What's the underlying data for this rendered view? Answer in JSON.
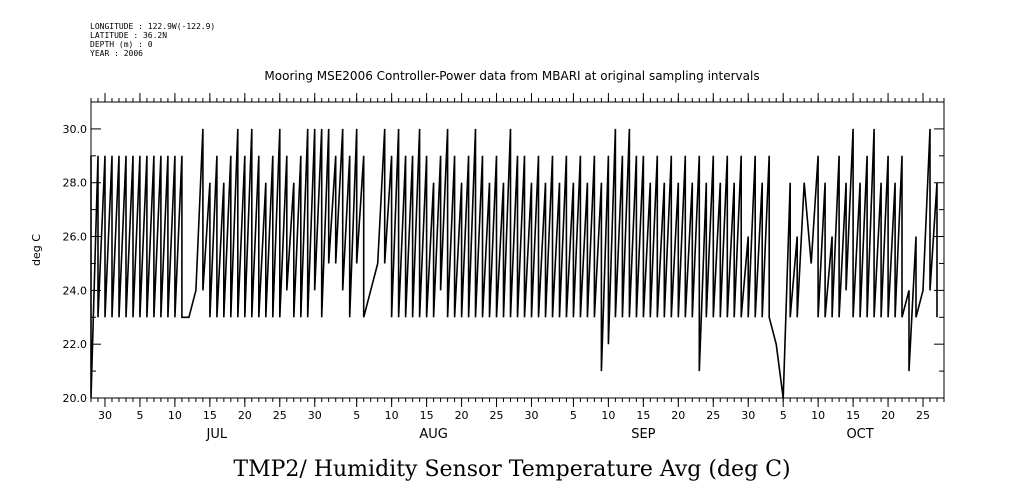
{
  "header": {
    "longitude": "LONGITUDE : 122.9W(-122.9)",
    "latitude": "LATITUDE : 36.2N",
    "depth": "DEPTH (m) : 0",
    "year": "YEAR : 2006"
  },
  "chart_data": {
    "type": "line",
    "title": "Mooring MSE2006 Controller-Power data from MBARI at original sampling intervals",
    "ylabel": "deg C",
    "bottom_title": "TMP2/ Humidity Sensor Temperature Avg (deg C)",
    "ylim": [
      20.0,
      31.0
    ],
    "y_ticks": [
      "20.0",
      "22.0",
      "24.0",
      "26.0",
      "28.0",
      "30.0"
    ],
    "y_tick_values": [
      20,
      22,
      24,
      26,
      28,
      30
    ],
    "xlim": [
      "2006-06-28",
      "2006-10-28"
    ],
    "x_ticks": [
      {
        "date": "2006-06-30",
        "label": "30"
      },
      {
        "date": "2006-07-05",
        "label": "5"
      },
      {
        "date": "2006-07-10",
        "label": "10"
      },
      {
        "date": "2006-07-15",
        "label": "15"
      },
      {
        "date": "2006-07-20",
        "label": "20"
      },
      {
        "date": "2006-07-25",
        "label": "25"
      },
      {
        "date": "2006-07-30",
        "label": "30"
      },
      {
        "date": "2006-08-05",
        "label": "5"
      },
      {
        "date": "2006-08-10",
        "label": "10"
      },
      {
        "date": "2006-08-15",
        "label": "15"
      },
      {
        "date": "2006-08-20",
        "label": "20"
      },
      {
        "date": "2006-08-25",
        "label": "25"
      },
      {
        "date": "2006-08-30",
        "label": "30"
      },
      {
        "date": "2006-09-05",
        "label": "5"
      },
      {
        "date": "2006-09-10",
        "label": "10"
      },
      {
        "date": "2006-09-15",
        "label": "15"
      },
      {
        "date": "2006-09-20",
        "label": "20"
      },
      {
        "date": "2006-09-25",
        "label": "25"
      },
      {
        "date": "2006-09-30",
        "label": "30"
      },
      {
        "date": "2006-10-05",
        "label": "5"
      },
      {
        "date": "2006-10-10",
        "label": "10"
      },
      {
        "date": "2006-10-15",
        "label": "15"
      },
      {
        "date": "2006-10-20",
        "label": "20"
      },
      {
        "date": "2006-10-25",
        "label": "25"
      }
    ],
    "months": [
      {
        "date": "2006-07-16",
        "label": "JUL"
      },
      {
        "date": "2006-08-16",
        "label": "AUG"
      },
      {
        "date": "2006-09-15",
        "label": "SEP"
      },
      {
        "date": "2006-10-16",
        "label": "OCT"
      }
    ],
    "grid": false,
    "legend": "none",
    "color": "#000000",
    "series": [
      {
        "x": [
          "2006-06-28",
          "2006-06-28",
          "2006-06-29",
          "2006-06-29",
          "2006-06-30",
          "2006-06-30",
          "2006-07-01",
          "2006-07-01",
          "2006-07-02",
          "2006-07-02",
          "2006-07-03",
          "2006-07-03",
          "2006-07-04",
          "2006-07-04",
          "2006-07-05",
          "2006-07-05",
          "2006-07-06",
          "2006-07-06",
          "2006-07-07",
          "2006-07-07",
          "2006-07-08",
          "2006-07-08",
          "2006-07-09",
          "2006-07-09",
          "2006-07-10",
          "2006-07-10",
          "2006-07-11",
          "2006-07-11",
          "2006-07-12",
          "2006-07-13",
          "2006-07-14",
          "2006-07-14",
          "2006-07-15",
          "2006-07-15",
          "2006-07-16",
          "2006-07-16",
          "2006-07-17",
          "2006-07-17",
          "2006-07-18",
          "2006-07-18",
          "2006-07-19",
          "2006-07-19",
          "2006-07-20",
          "2006-07-20",
          "2006-07-21",
          "2006-07-21",
          "2006-07-22",
          "2006-07-22",
          "2006-07-23",
          "2006-07-23",
          "2006-07-24",
          "2006-07-24",
          "2006-07-25",
          "2006-07-25",
          "2006-07-26",
          "2006-07-26",
          "2006-07-27",
          "2006-07-27",
          "2006-07-28",
          "2006-07-28",
          "2006-07-29",
          "2006-07-29",
          "2006-07-30",
          "2006-07-30",
          "2006-07-31",
          "2006-07-31",
          "2006-08-01",
          "2006-08-01",
          "2006-08-02",
          "2006-08-02",
          "2006-08-03",
          "2006-08-03",
          "2006-08-04",
          "2006-08-04",
          "2006-08-05",
          "2006-08-05",
          "2006-08-06",
          "2006-08-06",
          "2006-08-07",
          "2006-08-08",
          "2006-08-09",
          "2006-08-09",
          "2006-08-10",
          "2006-08-10",
          "2006-08-11",
          "2006-08-11",
          "2006-08-12",
          "2006-08-12",
          "2006-08-13",
          "2006-08-13",
          "2006-08-14",
          "2006-08-14",
          "2006-08-15",
          "2006-08-15",
          "2006-08-16",
          "2006-08-16",
          "2006-08-17",
          "2006-08-17",
          "2006-08-18",
          "2006-08-18",
          "2006-08-19",
          "2006-08-19",
          "2006-08-20",
          "2006-08-20",
          "2006-08-21",
          "2006-08-21",
          "2006-08-22",
          "2006-08-22",
          "2006-08-23",
          "2006-08-23",
          "2006-08-24",
          "2006-08-24",
          "2006-08-25",
          "2006-08-25",
          "2006-08-26",
          "2006-08-26",
          "2006-08-27",
          "2006-08-27",
          "2006-08-28",
          "2006-08-28",
          "2006-08-29",
          "2006-08-29",
          "2006-08-30",
          "2006-08-30",
          "2006-08-31",
          "2006-08-31",
          "2006-09-01",
          "2006-09-01",
          "2006-09-02",
          "2006-09-02",
          "2006-09-03",
          "2006-09-03",
          "2006-09-04",
          "2006-09-04",
          "2006-09-05",
          "2006-09-05",
          "2006-09-06",
          "2006-09-06",
          "2006-09-07",
          "2006-09-07",
          "2006-09-08",
          "2006-09-08",
          "2006-09-09",
          "2006-09-09",
          "2006-09-10",
          "2006-09-10",
          "2006-09-11",
          "2006-09-11",
          "2006-09-12",
          "2006-09-12",
          "2006-09-13",
          "2006-09-13",
          "2006-09-14",
          "2006-09-14",
          "2006-09-15",
          "2006-09-15",
          "2006-09-16",
          "2006-09-16",
          "2006-09-17",
          "2006-09-17",
          "2006-09-18",
          "2006-09-18",
          "2006-09-19",
          "2006-09-19",
          "2006-09-20",
          "2006-09-20",
          "2006-09-21",
          "2006-09-21",
          "2006-09-22",
          "2006-09-22",
          "2006-09-23",
          "2006-09-23",
          "2006-09-24",
          "2006-09-24",
          "2006-09-25",
          "2006-09-25",
          "2006-09-26",
          "2006-09-26",
          "2006-09-27",
          "2006-09-27",
          "2006-09-28",
          "2006-09-28",
          "2006-09-29",
          "2006-09-29",
          "2006-09-30",
          "2006-09-30",
          "2006-10-01",
          "2006-10-01",
          "2006-10-02",
          "2006-10-02",
          "2006-10-03",
          "2006-10-03",
          "2006-10-04",
          "2006-10-05",
          "2006-10-06",
          "2006-10-06",
          "2006-10-07",
          "2006-10-07",
          "2006-10-08",
          "2006-10-09",
          "2006-10-10",
          "2006-10-10",
          "2006-10-11",
          "2006-10-11",
          "2006-10-12",
          "2006-10-12",
          "2006-10-13",
          "2006-10-13",
          "2006-10-14",
          "2006-10-14",
          "2006-10-15",
          "2006-10-15",
          "2006-10-16",
          "2006-10-16",
          "2006-10-17",
          "2006-10-17",
          "2006-10-18",
          "2006-10-18",
          "2006-10-19",
          "2006-10-19",
          "2006-10-20",
          "2006-10-20",
          "2006-10-21",
          "2006-10-21",
          "2006-10-22",
          "2006-10-22",
          "2006-10-23",
          "2006-10-23",
          "2006-10-24",
          "2006-10-24",
          "2006-10-25",
          "2006-10-26",
          "2006-10-26",
          "2006-10-27",
          "2006-10-27"
        ],
        "y": [
          29,
          20,
          29,
          23,
          29,
          23,
          29,
          23,
          29,
          23,
          29,
          23,
          29,
          23,
          29,
          23,
          29,
          23,
          29,
          23,
          29,
          23,
          29,
          23,
          29,
          23,
          29,
          23,
          23,
          24,
          30,
          24,
          28,
          23,
          29,
          23,
          28,
          23,
          29,
          23,
          30,
          23,
          29,
          23,
          30,
          23,
          29,
          23,
          28,
          23,
          29,
          23,
          30,
          23,
          29,
          24,
          28,
          23,
          29,
          23,
          30,
          23,
          30,
          24,
          30,
          23,
          30,
          25,
          29,
          25,
          30,
          24,
          29,
          23,
          30,
          25,
          29,
          23,
          24,
          25,
          30,
          25,
          29,
          23,
          30,
          23,
          29,
          23,
          29,
          23,
          30,
          23,
          29,
          23,
          28,
          23,
          29,
          24,
          30,
          23,
          29,
          23,
          28,
          23,
          29,
          23,
          30,
          23,
          29,
          23,
          28,
          23,
          29,
          23,
          28,
          23,
          30,
          23,
          29,
          23,
          29,
          23,
          28,
          23,
          29,
          23,
          28,
          23,
          29,
          23,
          28,
          23,
          29,
          23,
          28,
          23,
          29,
          23,
          28,
          23,
          29,
          23,
          28,
          21,
          29,
          22,
          30,
          23,
          29,
          23,
          30,
          23,
          29,
          23,
          29,
          23,
          28,
          23,
          29,
          23,
          28,
          23,
          29,
          23,
          28,
          23,
          29,
          23,
          28,
          23,
          29,
          21,
          28,
          23,
          29,
          23,
          28,
          23,
          29,
          23,
          28,
          23,
          29,
          23,
          26,
          23,
          29,
          23,
          28,
          23,
          29,
          23,
          22,
          20,
          28,
          23,
          26,
          23,
          28,
          25,
          29,
          23,
          28,
          23,
          26,
          23,
          29,
          23,
          28,
          24,
          30,
          23,
          28,
          23,
          29,
          23,
          30,
          23,
          28,
          23,
          29,
          23,
          28,
          23,
          29,
          23,
          24,
          21,
          26,
          23,
          24,
          30,
          24,
          28,
          23
        ]
      }
    ]
  }
}
